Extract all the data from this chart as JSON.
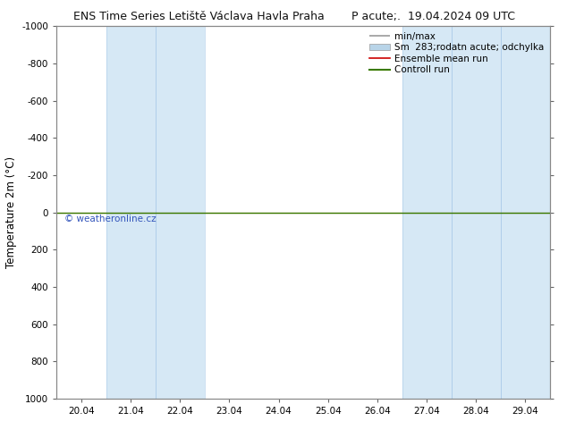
{
  "title_left": "ENS Time Series Letiště Václava Havla Praha",
  "title_right": "P acute;.  19.04.2024 09 UTC",
  "ylabel": "Temperature 2m (°C)",
  "ylim_bottom": 1000,
  "ylim_top": -1000,
  "yticks": [
    -1000,
    -800,
    -600,
    -400,
    -200,
    0,
    200,
    400,
    600,
    800,
    1000
  ],
  "xtick_labels": [
    "20.04",
    "21.04",
    "22.04",
    "23.04",
    "24.04",
    "25.04",
    "26.04",
    "27.04",
    "28.04",
    "29.04"
  ],
  "xtick_positions": [
    0,
    1,
    2,
    3,
    4,
    5,
    6,
    7,
    8,
    9
  ],
  "shaded_spans": [
    [
      0.5,
      1.5
    ],
    [
      1.5,
      2.5
    ],
    [
      6.5,
      7.5
    ],
    [
      7.5,
      8.5
    ],
    [
      8.5,
      9.5
    ]
  ],
  "shade_color": "#d6e8f5",
  "shade_border_color": "#a8c8e8",
  "bg_color": "#ffffff",
  "plot_bg_color": "#ffffff",
  "green_line_color": "#3a7a00",
  "red_line_color": "#cc0000",
  "legend_labels": [
    "min/max",
    "Sm  283;rodatn acute; odchylka",
    "Ensemble mean run",
    "Controll run"
  ],
  "legend_line_colors": [
    "#999999",
    "#b8d4e8",
    "#cc0000",
    "#3a7a00"
  ],
  "watermark": "© weatheronline.cz",
  "watermark_color": "#3355bb",
  "title_fontsize": 9,
  "axis_fontsize": 8.5,
  "tick_fontsize": 7.5,
  "legend_fontsize": 7.5
}
